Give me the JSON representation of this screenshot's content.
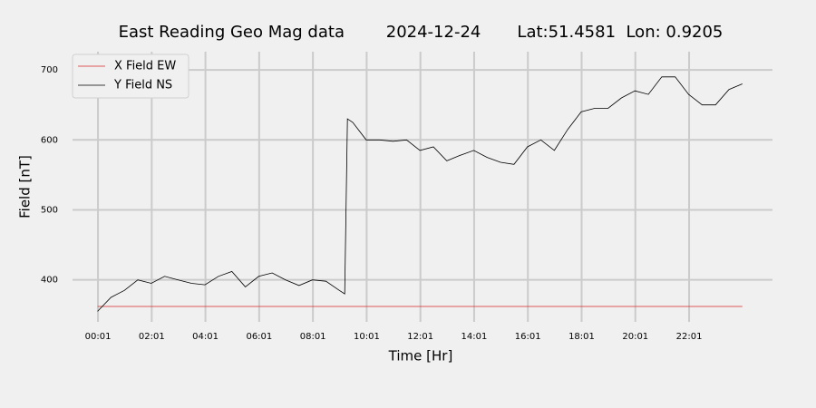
{
  "chart_data": {
    "type": "line",
    "title": "East Reading Geo Mag data        2024-12-24       Lat:51.4581  Lon: 0.9205",
    "x_label": "Time  [Hr]",
    "y_label": "Field  [nT]",
    "x": [
      0,
      0.5,
      1,
      1.5,
      2,
      2.5,
      3,
      3.5,
      4,
      4.5,
      5,
      5.5,
      6,
      6.5,
      7,
      7.5,
      8,
      8.5,
      9,
      9.2,
      9.3,
      9.5,
      10,
      10.5,
      11,
      11.5,
      12,
      12.5,
      13,
      13.5,
      14,
      14.5,
      15,
      15.5,
      16,
      16.5,
      17,
      17.5,
      18,
      18.5,
      19,
      19.5,
      20,
      20.5,
      21,
      21.5,
      22,
      22.5,
      23,
      23.5,
      24
    ],
    "series": [
      {
        "name": "X Field EW",
        "color": "#d62728",
        "values": [
          362,
          362,
          362,
          362,
          362,
          362,
          362,
          362,
          362,
          362,
          362,
          362,
          362,
          362,
          362,
          362,
          362,
          362,
          362,
          362,
          362,
          362,
          362,
          362,
          362,
          362,
          362,
          362,
          362,
          362,
          362,
          362,
          362,
          362,
          362,
          362,
          362,
          362,
          362,
          362,
          362,
          362,
          362,
          362,
          362,
          362,
          362,
          362,
          362,
          362,
          362
        ]
      },
      {
        "name": "Y Field NS",
        "color": "#000000",
        "values": [
          355,
          375,
          385,
          400,
          395,
          405,
          400,
          395,
          393,
          405,
          412,
          390,
          405,
          410,
          400,
          392,
          400,
          398,
          385,
          380,
          630,
          625,
          600,
          600,
          598,
          600,
          585,
          590,
          570,
          578,
          585,
          575,
          568,
          565,
          590,
          600,
          585,
          615,
          640,
          645,
          645,
          660,
          670,
          665,
          690,
          690,
          665,
          650,
          650,
          672,
          680
        ]
      }
    ],
    "xlim": [
      -0.93,
      25.12
    ],
    "ylim": [
      340,
      726
    ],
    "xticks": [
      {
        "value": 0.0167,
        "label": "00:01"
      },
      {
        "value": 2.0167,
        "label": "02:01"
      },
      {
        "value": 4.0167,
        "label": "04:01"
      },
      {
        "value": 6.0167,
        "label": "06:01"
      },
      {
        "value": 8.0167,
        "label": "08:01"
      },
      {
        "value": 10.0167,
        "label": "10:01"
      },
      {
        "value": 12.0167,
        "label": "12:01"
      },
      {
        "value": 14.0167,
        "label": "14:01"
      },
      {
        "value": 16.0167,
        "label": "16:01"
      },
      {
        "value": 18.0167,
        "label": "18:01"
      },
      {
        "value": 20.0167,
        "label": "20:01"
      },
      {
        "value": 22.0167,
        "label": "22:01"
      }
    ],
    "yticks": [
      400,
      500,
      600,
      700
    ],
    "grid": true,
    "legend": "upper-left"
  }
}
